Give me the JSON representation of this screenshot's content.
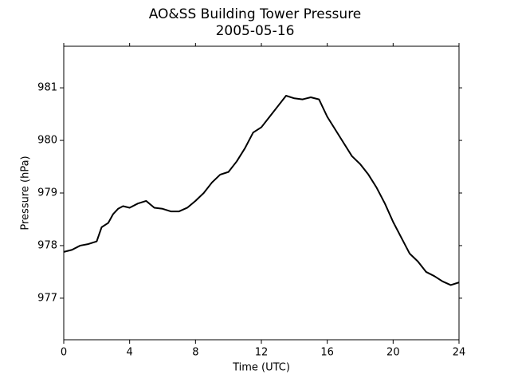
{
  "chart_data": {
    "type": "line",
    "title": "AO&SS Building Tower Pressure",
    "subtitle": "2005-05-16",
    "x_label": "Time (UTC)",
    "y_label": "Pressure (hPa)",
    "x": [
      0,
      0.5,
      1,
      1.5,
      2,
      2.3,
      2.7,
      3,
      3.3,
      3.6,
      4,
      4.5,
      5,
      5.5,
      6,
      6.5,
      7,
      7.5,
      8,
      8.5,
      9,
      9.5,
      10,
      10.5,
      11,
      11.5,
      12,
      12.5,
      13,
      13.5,
      14,
      14.5,
      15,
      15.5,
      16,
      16.5,
      17,
      17.5,
      18,
      18.5,
      19,
      19.5,
      20,
      20.5,
      21,
      21.5,
      22,
      22.5,
      23,
      23.5,
      24
    ],
    "series": [
      {
        "name": "Pressure",
        "color": "#000000",
        "values": [
          977.88,
          977.92,
          978.0,
          978.03,
          978.08,
          978.35,
          978.43,
          978.6,
          978.7,
          978.75,
          978.72,
          978.8,
          978.85,
          978.72,
          978.7,
          978.65,
          978.65,
          978.72,
          978.85,
          979.0,
          979.2,
          979.35,
          979.4,
          979.6,
          979.85,
          980.15,
          980.25,
          980.45,
          980.65,
          980.85,
          980.8,
          980.78,
          980.82,
          980.78,
          980.45,
          980.2,
          979.95,
          979.7,
          979.55,
          979.35,
          979.1,
          978.8,
          978.45,
          978.15,
          977.85,
          977.7,
          977.5,
          977.42,
          977.32,
          977.25,
          977.3
        ]
      }
    ],
    "xlim": [
      0,
      24
    ],
    "xticks": [
      0,
      4,
      8,
      12,
      16,
      20,
      24
    ],
    "ylim": [
      976.21,
      981.79
    ],
    "yticks": [
      977,
      978,
      979,
      980,
      981
    ],
    "grid": false
  }
}
